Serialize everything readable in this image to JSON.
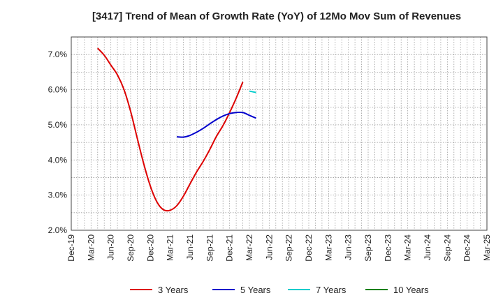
{
  "chart_data": {
    "type": "line",
    "title": "[3417]  Trend of Mean of Growth Rate (YoY) of 12Mo Mov Sum of Revenues",
    "xlabel": "",
    "ylabel": "",
    "ylim": [
      2.0,
      7.5
    ],
    "x_tick_labels": [
      "Dec-19",
      "Mar-20",
      "Jun-20",
      "Sep-20",
      "Dec-20",
      "Mar-21",
      "Jun-21",
      "Sep-21",
      "Dec-21",
      "Mar-22",
      "Jun-22",
      "Sep-22",
      "Dec-22",
      "Mar-23",
      "Jun-23",
      "Sep-23",
      "Dec-23",
      "Mar-24",
      "Jun-24",
      "Sep-24",
      "Dec-24",
      "Mar-25"
    ],
    "y_ticks": [
      2.0,
      3.0,
      4.0,
      5.0,
      6.0,
      7.0
    ],
    "y_tick_labels": [
      "2.0%",
      "3.0%",
      "4.0%",
      "5.0%",
      "6.0%",
      "7.0%"
    ],
    "grid": true,
    "legend_position": "bottom",
    "series": [
      {
        "name": "3 Years",
        "color": "#dd0000",
        "points": [
          [
            4,
            7.18
          ],
          [
            5,
            6.98
          ],
          [
            6,
            6.7
          ],
          [
            7,
            6.42
          ],
          [
            8,
            6.0
          ],
          [
            9,
            5.38
          ],
          [
            10,
            4.62
          ],
          [
            11,
            3.88
          ],
          [
            12,
            3.25
          ],
          [
            13,
            2.8
          ],
          [
            14,
            2.58
          ],
          [
            15,
            2.57
          ],
          [
            16,
            2.7
          ],
          [
            17,
            2.97
          ],
          [
            18,
            3.32
          ],
          [
            19,
            3.66
          ],
          [
            20,
            3.96
          ],
          [
            21,
            4.3
          ],
          [
            22,
            4.67
          ],
          [
            23,
            4.98
          ],
          [
            24,
            5.35
          ],
          [
            25,
            5.76
          ],
          [
            26,
            6.22
          ]
        ]
      },
      {
        "name": "5 Years",
        "color": "#0000cc",
        "points": [
          [
            16,
            4.66
          ],
          [
            17,
            4.65
          ],
          [
            18,
            4.7
          ],
          [
            19,
            4.79
          ],
          [
            20,
            4.9
          ],
          [
            21,
            5.03
          ],
          [
            22,
            5.15
          ],
          [
            23,
            5.25
          ],
          [
            24,
            5.32
          ],
          [
            25,
            5.35
          ],
          [
            26,
            5.35
          ],
          [
            27,
            5.27
          ],
          [
            28,
            5.19
          ]
        ]
      },
      {
        "name": "7 Years",
        "color": "#00cccc",
        "points": [
          [
            27,
            5.96
          ],
          [
            28,
            5.92
          ]
        ]
      },
      {
        "name": "10 Years",
        "color": "#008000",
        "points": []
      }
    ]
  }
}
